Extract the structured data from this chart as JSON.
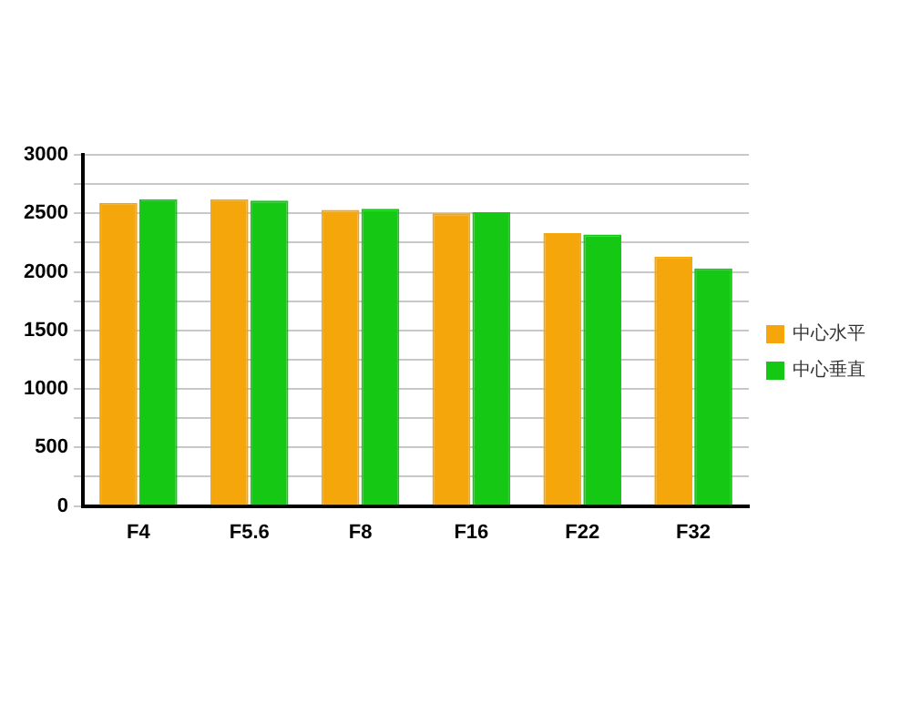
{
  "chart_data": {
    "type": "bar",
    "categories": [
      "F4",
      "F5.6",
      "F8",
      "F16",
      "F22",
      "F32"
    ],
    "series": [
      {
        "name": "中心水平",
        "color": "#f5a60a",
        "values": [
          2590,
          2620,
          2530,
          2500,
          2330,
          2130
        ]
      },
      {
        "name": "中心垂直",
        "color": "#14c814",
        "values": [
          2620,
          2610,
          2540,
          2510,
          2320,
          2030
        ]
      }
    ],
    "ylim": [
      0,
      3000
    ],
    "yticks": [
      0,
      {
        "value": 250,
        "label": null
      },
      500,
      {
        "value": 750,
        "label": null
      },
      1000,
      {
        "value": 1250,
        "label": null
      },
      1500,
      {
        "value": 1750,
        "label": null
      },
      2000,
      {
        "value": 2250,
        "label": null
      },
      2500,
      {
        "value": 2750,
        "label": null
      },
      3000
    ],
    "grid": "y",
    "legend": "right"
  }
}
